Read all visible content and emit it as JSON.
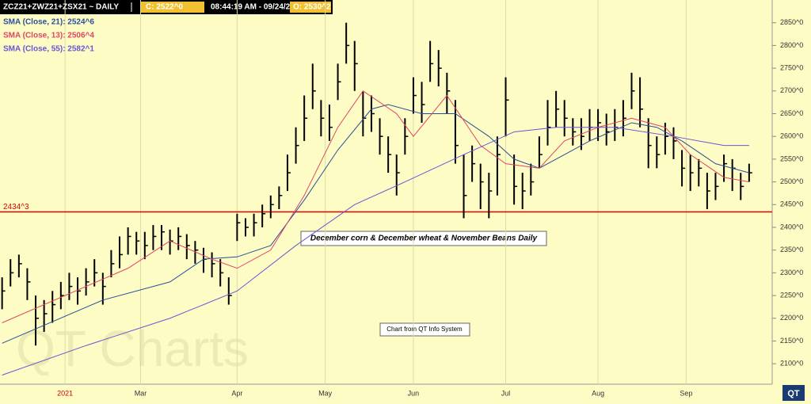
{
  "chart_data": {
    "type": "ohlc",
    "title": "ZCZ21+ZWZ21+ZSX21  ~  DAILY",
    "header_items": [
      "C: 2522^0",
      "08:44:19 AM  -  09/24/21",
      "O: 2530^2"
    ],
    "watermark": "QT Charts",
    "logo": "QT",
    "annotations": [
      "December corn & December wheat & November Beans Daily",
      "Chart from QT Info System"
    ],
    "xlim": [
      -0.5,
      183.5
    ],
    "ylim": [
      2055,
      2900
    ],
    "xticks": [
      {
        "value": 15,
        "label": "2021"
      },
      {
        "value": 33,
        "label": "Mar"
      },
      {
        "value": 56,
        "label": "Apr"
      },
      {
        "value": 77,
        "label": "May"
      },
      {
        "value": 98,
        "label": "Jun"
      },
      {
        "value": 120,
        "label": "Jul"
      },
      {
        "value": 142,
        "label": "Aug"
      },
      {
        "value": 163,
        "label": "Sep"
      }
    ],
    "first_xtick_color": "#d00000",
    "yticks": [
      {
        "value": 2100,
        "label": "2100^0"
      },
      {
        "value": 2150,
        "label": "2150^0"
      },
      {
        "value": 2200,
        "label": "2200^0"
      },
      {
        "value": 2250,
        "label": "2250^0"
      },
      {
        "value": 2300,
        "label": "2300^0"
      },
      {
        "value": 2350,
        "label": "2350^0"
      },
      {
        "value": 2400,
        "label": "2400^0"
      },
      {
        "value": 2450,
        "label": "2450^0"
      },
      {
        "value": 2500,
        "label": "2500^0"
      },
      {
        "value": 2550,
        "label": "2550^0"
      },
      {
        "value": 2600,
        "label": "2600^0"
      },
      {
        "value": 2650,
        "label": "2650^0"
      },
      {
        "value": 2700,
        "label": "2700^0"
      },
      {
        "value": 2750,
        "label": "2750^0"
      },
      {
        "value": 2800,
        "label": "2800^0"
      },
      {
        "value": 2850,
        "label": "2850^0"
      }
    ],
    "reference_line": {
      "value": 2434,
      "label": "2434^3",
      "color": "#e00000"
    },
    "bar_color": "#000000",
    "bars": {
      "x": [
        0,
        2,
        4,
        6,
        8,
        10,
        12,
        14,
        16,
        18,
        20,
        22,
        24,
        26,
        28,
        30,
        32,
        34,
        36,
        38,
        40,
        42,
        44,
        46,
        48,
        50,
        52,
        54,
        56,
        58,
        60,
        62,
        64,
        66,
        68,
        70,
        72,
        74,
        76,
        78,
        80,
        82,
        84,
        86,
        88,
        90,
        92,
        94,
        96,
        98,
        100,
        102,
        104,
        106,
        108,
        110,
        112,
        114,
        116,
        118,
        120,
        122,
        124,
        126,
        128,
        130,
        132,
        134,
        136,
        138,
        140,
        142,
        144,
        146,
        148,
        150,
        152,
        154,
        156,
        158,
        160,
        162,
        164,
        166,
        168,
        170,
        172,
        174,
        176,
        178
      ],
      "high": [
        2290,
        2330,
        2340,
        2310,
        2250,
        2240,
        2260,
        2280,
        2300,
        2290,
        2310,
        2330,
        2300,
        2350,
        2380,
        2400,
        2390,
        2390,
        2405,
        2405,
        2395,
        2400,
        2385,
        2370,
        2355,
        2345,
        2330,
        2290,
        2430,
        2420,
        2430,
        2450,
        2470,
        2490,
        2560,
        2620,
        2690,
        2760,
        2680,
        2670,
        2760,
        2850,
        2810,
        2700,
        2690,
        2640,
        2600,
        2560,
        2640,
        2730,
        2720,
        2810,
        2790,
        2740,
        2680,
        2560,
        2580,
        2540,
        2520,
        2600,
        2730,
        2560,
        2520,
        2540,
        2600,
        2680,
        2700,
        2680,
        2640,
        2640,
        2660,
        2660,
        2650,
        2660,
        2680,
        2740,
        2730,
        2640,
        2600,
        2630,
        2620,
        2570,
        2560,
        2550,
        2520,
        2520,
        2560,
        2550,
        2520,
        2540
      ],
      "low": [
        2220,
        2270,
        2290,
        2240,
        2140,
        2170,
        2190,
        2220,
        2240,
        2230,
        2250,
        2270,
        2230,
        2290,
        2310,
        2340,
        2340,
        2330,
        2350,
        2350,
        2340,
        2350,
        2330,
        2320,
        2300,
        2290,
        2270,
        2230,
        2370,
        2380,
        2380,
        2400,
        2420,
        2440,
        2480,
        2540,
        2590,
        2660,
        2600,
        2590,
        2680,
        2760,
        2700,
        2600,
        2610,
        2560,
        2520,
        2470,
        2560,
        2650,
        2630,
        2720,
        2710,
        2650,
        2540,
        2420,
        2500,
        2440,
        2420,
        2470,
        2600,
        2450,
        2440,
        2470,
        2530,
        2580,
        2620,
        2600,
        2580,
        2570,
        2590,
        2590,
        2580,
        2590,
        2600,
        2660,
        2620,
        2530,
        2530,
        2560,
        2550,
        2490,
        2480,
        2490,
        2440,
        2460,
        2500,
        2480,
        2460,
        2500
      ],
      "close": [
        2260,
        2300,
        2320,
        2280,
        2200,
        2210,
        2230,
        2250,
        2270,
        2260,
        2280,
        2300,
        2270,
        2320,
        2340,
        2380,
        2370,
        2360,
        2380,
        2390,
        2370,
        2380,
        2360,
        2350,
        2330,
        2320,
        2300,
        2250,
        2410,
        2400,
        2410,
        2430,
        2450,
        2470,
        2520,
        2580,
        2640,
        2700,
        2640,
        2620,
        2720,
        2800,
        2760,
        2640,
        2650,
        2600,
        2560,
        2520,
        2600,
        2690,
        2670,
        2760,
        2750,
        2700,
        2580,
        2470,
        2540,
        2500,
        2480,
        2560,
        2680,
        2490,
        2480,
        2500,
        2560,
        2620,
        2660,
        2640,
        2610,
        2600,
        2620,
        2630,
        2610,
        2620,
        2640,
        2700,
        2660,
        2580,
        2560,
        2600,
        2590,
        2530,
        2520,
        2530,
        2480,
        2490,
        2540,
        2530,
        2490,
        2520
      ]
    },
    "series": [
      {
        "name": "SMA (Close, 21): 2524^6",
        "color": "#2a4f9a",
        "x": [
          0,
          24,
          40,
          48,
          56,
          64,
          72,
          80,
          88,
          92,
          100,
          108,
          116,
          122,
          128,
          134,
          140,
          150,
          156,
          162,
          170,
          178
        ],
        "values": [
          2145,
          2240,
          2280,
          2330,
          2335,
          2360,
          2460,
          2570,
          2660,
          2670,
          2650,
          2650,
          2600,
          2550,
          2530,
          2560,
          2590,
          2630,
          2620,
          2590,
          2540,
          2520
        ]
      },
      {
        "name": "SMA (Close, 13): 2506^4",
        "color": "#e04468",
        "x": [
          0,
          20,
          30,
          40,
          50,
          56,
          64,
          72,
          80,
          86,
          94,
          98,
          106,
          114,
          120,
          128,
          134,
          142,
          150,
          158,
          164,
          172,
          178
        ],
        "values": [
          2190,
          2270,
          2310,
          2370,
          2330,
          2310,
          2350,
          2470,
          2620,
          2700,
          2650,
          2600,
          2690,
          2580,
          2540,
          2530,
          2590,
          2620,
          2640,
          2620,
          2560,
          2510,
          2500
        ]
      },
      {
        "name": "SMA (Close, 55): 2582^1",
        "color": "#6a55d8",
        "x": [
          0,
          20,
          40,
          56,
          70,
          84,
          96,
          110,
          122,
          132,
          146,
          160,
          172,
          178
        ],
        "values": [
          2075,
          2140,
          2200,
          2260,
          2360,
          2450,
          2500,
          2560,
          2610,
          2620,
          2620,
          2600,
          2580,
          2580
        ]
      }
    ]
  }
}
